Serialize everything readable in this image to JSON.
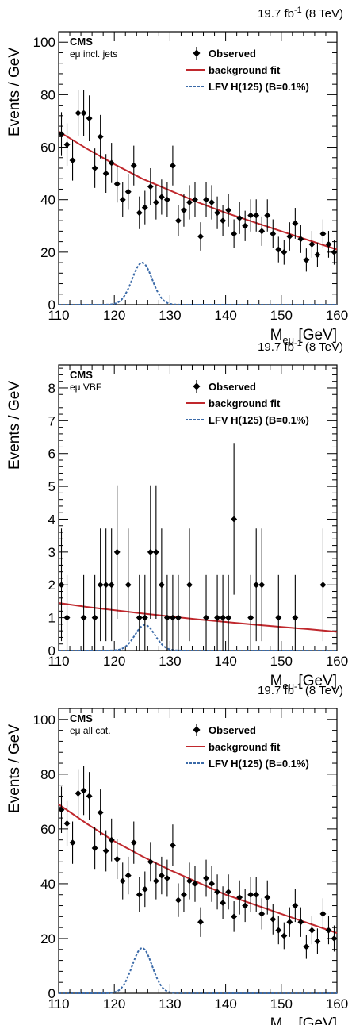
{
  "chart_data": [
    {
      "type": "scatter",
      "lumi_text": "19.7 fb",
      "lumi_sup": "-1",
      "lumi_tail": " (8 TeV)",
      "cms_label": "CMS",
      "category": "eμ incl. jets",
      "xlabel": "M",
      "xlabel_sub": "eμ",
      "xlabel_unit": " [GeV]",
      "ylabel": "Events / GeV",
      "xlim": [
        110,
        160
      ],
      "ylim": [
        0,
        104
      ],
      "xticks": [
        110,
        120,
        130,
        140,
        150,
        160
      ],
      "yticks": [
        0,
        20,
        40,
        60,
        80,
        100
      ],
      "legend": {
        "placement": "top-right",
        "observed": "Observed",
        "bkg": "background fit",
        "signal": "LFV H(125) (B=0.1%)"
      },
      "colors": {
        "observed": "#000000",
        "bkg": "#c0282d",
        "signal": "#3b6aa8"
      },
      "observed": {
        "x": [
          110.5,
          111.5,
          112.5,
          113.5,
          114.5,
          115.5,
          116.5,
          117.5,
          118.5,
          119.5,
          120.5,
          121.5,
          122.5,
          123.5,
          124.5,
          125.5,
          126.5,
          127.5,
          128.5,
          129.5,
          130.5,
          131.5,
          132.5,
          133.5,
          134.5,
          135.5,
          136.5,
          137.5,
          138.5,
          139.5,
          140.5,
          141.5,
          142.5,
          143.5,
          144.5,
          145.5,
          146.5,
          147.5,
          148.5,
          149.5,
          150.5,
          151.5,
          152.5,
          153.5,
          154.5,
          155.5,
          156.5,
          157.5,
          158.5,
          159.5
        ],
        "y": [
          65,
          61,
          55,
          73,
          73,
          71,
          52,
          64,
          50,
          54,
          46,
          40,
          43,
          53,
          35,
          37,
          45,
          39,
          41,
          40,
          53,
          32,
          36,
          39,
          40,
          26,
          40,
          39,
          35,
          32,
          36,
          27,
          33,
          30,
          34,
          34,
          28,
          34,
          27,
          21,
          20,
          26,
          31,
          25,
          17,
          23,
          19,
          27,
          23,
          20
        ]
      },
      "background": {
        "x": [
          110,
          115,
          120,
          125,
          130,
          135,
          140,
          145,
          150,
          155,
          160
        ],
        "y": [
          66,
          59.5,
          53.5,
          48,
          43.5,
          39,
          35,
          31.5,
          28,
          24.5,
          21
        ]
      },
      "signal": {
        "mean": 125,
        "sigma": 1.8,
        "peak": 16
      }
    },
    {
      "type": "scatter",
      "lumi_text": "19.7 fb",
      "lumi_sup": "-1",
      "lumi_tail": " (8 TeV)",
      "cms_label": "CMS",
      "category": "eμ VBF",
      "xlabel": "M",
      "xlabel_sub": "eμ",
      "xlabel_unit": " [GeV]",
      "ylabel": "Events / GeV",
      "xlim": [
        110,
        160
      ],
      "ylim": [
        0,
        8.7
      ],
      "xticks": [
        110,
        120,
        130,
        140,
        150,
        160
      ],
      "yticks": [
        0,
        1,
        2,
        3,
        4,
        5,
        6,
        7,
        8
      ],
      "legend": {
        "placement": "top-right",
        "observed": "Observed",
        "bkg": "background fit",
        "signal": "LFV H(125) (B=0.1%)"
      },
      "colors": {
        "observed": "#000000",
        "bkg": "#c0282d",
        "signal": "#3b6aa8"
      },
      "observed": {
        "x": [
          110.5,
          111.5,
          114.5,
          116.5,
          117.5,
          118.5,
          119.5,
          120.5,
          122.5,
          124.5,
          125.5,
          126.5,
          127.5,
          128.5,
          129.5,
          130.5,
          131.5,
          133.5,
          136.5,
          138.5,
          139.5,
          140.5,
          141.5,
          144.5,
          145.5,
          146.5,
          149.5,
          152.5,
          157.5
        ],
        "y": [
          2,
          1,
          1,
          1,
          2,
          2,
          2,
          3,
          2,
          1,
          1,
          3,
          3,
          2,
          1,
          1,
          1,
          2,
          1,
          1,
          1,
          1,
          4,
          1,
          2,
          2,
          1,
          1,
          2
        ]
      },
      "background": {
        "x": [
          110,
          115,
          120,
          125,
          130,
          135,
          140,
          145,
          150,
          155,
          160
        ],
        "y": [
          1.45,
          1.33,
          1.23,
          1.13,
          1.04,
          0.95,
          0.87,
          0.79,
          0.72,
          0.65,
          0.57
        ]
      },
      "signal": {
        "mean": 125.5,
        "sigma": 1.8,
        "peak": 0.78
      }
    },
    {
      "type": "scatter",
      "lumi_text": "19.7 fb",
      "lumi_sup": "-1",
      "lumi_tail": " (8 TeV)",
      "cms_label": "CMS",
      "category": "eμ all cat.",
      "xlabel": "M",
      "xlabel_sub": "eμ",
      "xlabel_unit": " [GeV]",
      "ylabel": "Events / GeV",
      "xlim": [
        110,
        160
      ],
      "ylim": [
        0,
        104
      ],
      "xticks": [
        110,
        120,
        130,
        140,
        150,
        160
      ],
      "yticks": [
        0,
        20,
        40,
        60,
        80,
        100
      ],
      "legend": {
        "placement": "top-right",
        "observed": "Observed",
        "bkg": "background fit",
        "signal": "LFV H(125) (B=0.1%)"
      },
      "colors": {
        "observed": "#000000",
        "bkg": "#c0282d",
        "signal": "#3b6aa8"
      },
      "observed": {
        "x": [
          110.5,
          111.5,
          112.5,
          113.5,
          114.5,
          115.5,
          116.5,
          117.5,
          118.5,
          119.5,
          120.5,
          121.5,
          122.5,
          123.5,
          124.5,
          125.5,
          126.5,
          127.5,
          128.5,
          129.5,
          130.5,
          131.5,
          132.5,
          133.5,
          134.5,
          135.5,
          136.5,
          137.5,
          138.5,
          139.5,
          140.5,
          141.5,
          142.5,
          143.5,
          144.5,
          145.5,
          146.5,
          147.5,
          148.5,
          149.5,
          150.5,
          151.5,
          152.5,
          153.5,
          154.5,
          155.5,
          156.5,
          157.5,
          158.5,
          159.5
        ],
        "y": [
          67,
          62,
          55,
          73,
          74,
          72,
          53,
          66,
          52,
          56,
          49,
          41,
          43,
          55,
          36,
          38,
          48,
          41,
          43,
          42,
          54,
          34,
          36,
          41,
          40,
          26,
          42,
          40,
          37,
          33,
          37,
          28,
          35,
          32,
          36,
          36,
          29,
          35,
          27,
          23,
          21,
          26,
          32,
          26,
          17,
          23,
          19,
          29,
          23,
          20
        ]
      },
      "background": {
        "x": [
          110,
          115,
          120,
          125,
          130,
          135,
          140,
          145,
          150,
          155,
          160
        ],
        "y": [
          69,
          62,
          55.5,
          50,
          45,
          40.5,
          36,
          32.5,
          29,
          25.5,
          22
        ]
      },
      "signal": {
        "mean": 125,
        "sigma": 1.8,
        "peak": 16.5
      }
    }
  ]
}
